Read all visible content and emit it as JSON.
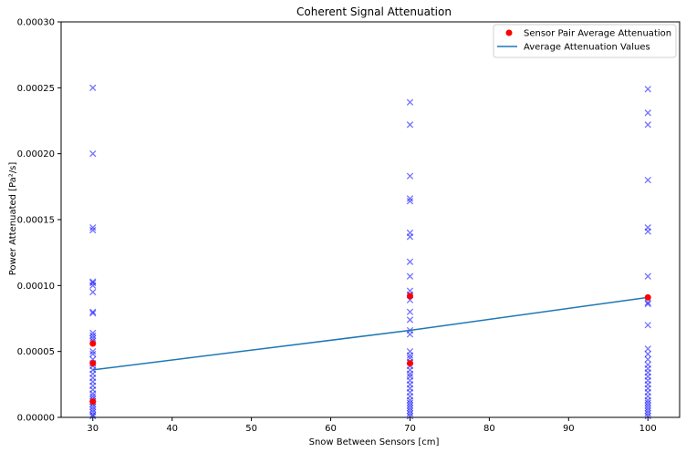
{
  "chart_data": {
    "type": "scatter",
    "title": "Coherent Signal Attenuation",
    "xlabel": "Snow Between Sensors [cm]",
    "ylabel": "Power Attenuated [Pa²/s]",
    "xlim": [
      26,
      104
    ],
    "ylim": [
      0,
      0.0003
    ],
    "xticks": [
      30,
      40,
      50,
      60,
      70,
      80,
      90,
      100
    ],
    "yticks": [
      0,
      5e-05,
      0.0001,
      0.00015,
      0.0002,
      0.00025,
      0.0003
    ],
    "xtick_labels": [
      "30",
      "40",
      "50",
      "60",
      "70",
      "80",
      "90",
      "100"
    ],
    "ytick_labels": [
      "0.00000",
      "0.00005",
      "0.00010",
      "0.00015",
      "0.00020",
      "0.00025",
      "0.00030"
    ],
    "grid": false,
    "legend_position": "top-right",
    "colors": {
      "individual": "#0000ff",
      "average_points": "#ff0000",
      "trend_line": "#1f77b4"
    },
    "series": [
      {
        "kind": "points-x",
        "x": 30,
        "values": [
          0.00025,
          0.0002,
          0.000144,
          0.000142,
          0.000103,
          0.000102,
          0.0001,
          9.5e-05,
          8e-05,
          7.9e-05,
          6.4e-05,
          6.2e-05,
          6e-05,
          5.8e-05,
          5e-05,
          4.8e-05,
          4.4e-05,
          4.1e-05,
          3.9e-05,
          3.6e-05,
          3.3e-05,
          3e-05,
          2.7e-05,
          2.4e-05,
          2.1e-05,
          1.8e-05,
          1.6e-05,
          1.4e-05,
          1.2e-05,
          1e-05,
          8e-06,
          6e-06,
          4e-06,
          2e-06,
          1e-06
        ]
      },
      {
        "kind": "points-x",
        "x": 70,
        "values": [
          0.000239,
          0.000222,
          0.000183,
          0.000166,
          0.000164,
          0.00014,
          0.000137,
          0.000118,
          0.000107,
          9.6e-05,
          9.3e-05,
          8.9e-05,
          8e-05,
          7.4e-05,
          6.6e-05,
          6.3e-05,
          5e-05,
          4.7e-05,
          4.5e-05,
          4.2e-05,
          3.9e-05,
          3.6e-05,
          3.3e-05,
          3.1e-05,
          2.8e-05,
          2.5e-05,
          2.2e-05,
          1.9e-05,
          1.6e-05,
          1.3e-05,
          1.1e-05,
          9e-06,
          7e-06,
          5e-06,
          3e-06,
          1e-06
        ]
      },
      {
        "kind": "points-x",
        "x": 100,
        "values": [
          0.000249,
          0.000231,
          0.000222,
          0.00018,
          0.000144,
          0.000141,
          0.000107,
          8.7e-05,
          8.6e-05,
          7e-05,
          5.2e-05,
          4.8e-05,
          4.4e-05,
          4e-05,
          3.7e-05,
          3.4e-05,
          3.1e-05,
          2.8e-05,
          2.5e-05,
          2.2e-05,
          1.9e-05,
          1.6e-05,
          1.3e-05,
          1.1e-05,
          9e-06,
          7e-06,
          5e-06,
          3e-06,
          1e-06
        ]
      },
      {
        "name": "Sensor Pair Average Attenuation",
        "kind": "points-dot",
        "x": [
          30,
          30,
          30,
          70,
          70,
          100
        ],
        "y": [
          5.6e-05,
          4.1e-05,
          1.2e-05,
          9.2e-05,
          4.1e-05,
          9.1e-05
        ]
      },
      {
        "name": "Average Attenuation Values",
        "kind": "line",
        "x": [
          30,
          70,
          100
        ],
        "y": [
          3.6e-05,
          6.6e-05,
          9.1e-05
        ]
      }
    ]
  }
}
